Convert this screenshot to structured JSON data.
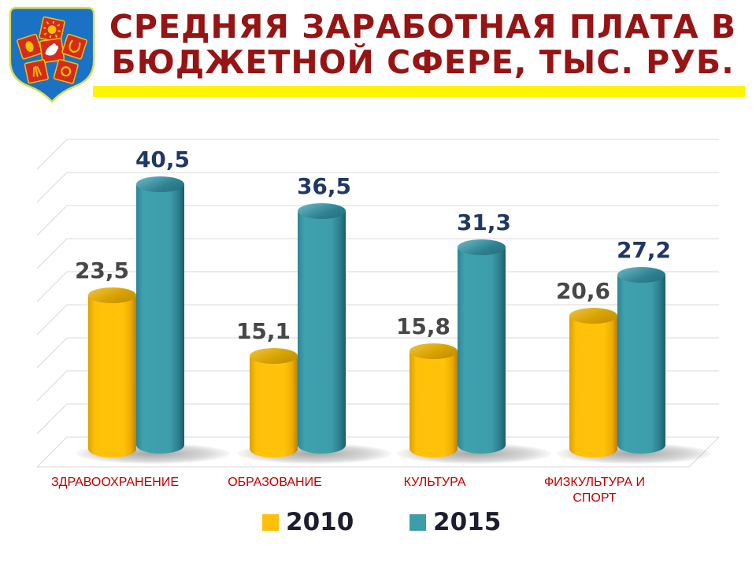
{
  "header": {
    "title_line1": "СРЕДНЯЯ ЗАРАБОТНАЯ ПЛАТА В",
    "title_line2": "БЮДЖЕТНОЙ СФЕРЕ, ТЫС. РУБ.",
    "title_color": "#971414",
    "underline_color": "#FFF400",
    "logo_icon": "coat-of-arms-icon",
    "logo_colors": {
      "shield": "#1B72C4",
      "squares": "#D52B1E",
      "ornaments": "#F2C500"
    }
  },
  "chart_data": {
    "type": "bar",
    "subtype": "3d-cylinder",
    "title": "СРЕДНЯЯ ЗАРАБОТНАЯ ПЛАТА В БЮДЖЕТНОЙ СФЕРЕ, ТЫС. РУБ.",
    "units": "тыс. руб.",
    "categories": [
      "ЗДРАВООХРАНЕНИЕ",
      "ОБРАЗОВАНИЕ",
      "КУЛЬТУРА",
      "ФИЗКУЛЬТУРА И СПОРТ"
    ],
    "category_label_color": "#C00000",
    "series": [
      {
        "name": "2010",
        "values": [
          23.5,
          15.1,
          15.8,
          20.6
        ],
        "color": "#FFC107",
        "label_color": "#474747"
      },
      {
        "name": "2015",
        "values": [
          40.5,
          36.5,
          31.3,
          27.2
        ],
        "color": "#3D9DAB",
        "label_color": "#1F3864"
      }
    ],
    "value_label_format": "decimal-comma",
    "ylim": [
      0,
      45
    ],
    "grid": true,
    "gridline_color": "#D8D8D8",
    "legend_position": "bottom",
    "legend_text_color": "#1D1D30"
  }
}
